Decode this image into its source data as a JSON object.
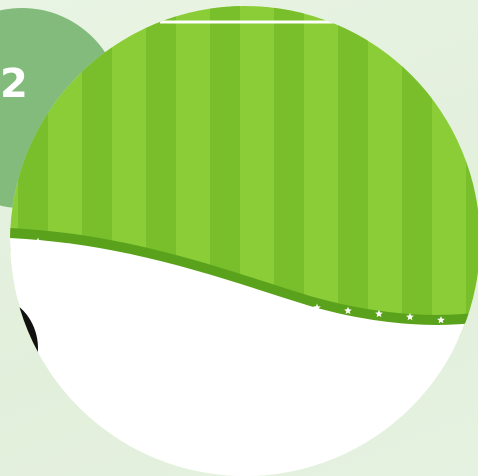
{
  "step": {
    "number": "2",
    "badge_color": "#82bb7c"
  },
  "illustration": {
    "stripe_light": "#8acd37",
    "stripe_dark": "#79bf2b",
    "border_color": "#5aa21c",
    "star_color": "#ffffff",
    "lower_color": "#ffffff",
    "ball_color": "#111111",
    "highlight_color": "#ffffff"
  }
}
